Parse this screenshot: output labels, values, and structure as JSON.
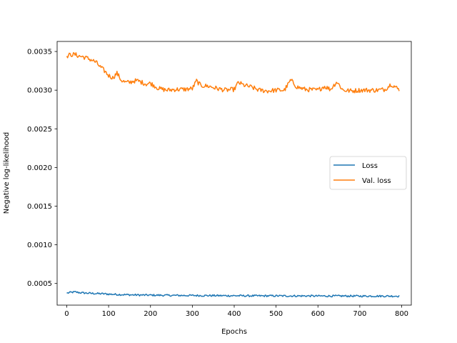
{
  "chart_data": {
    "type": "line",
    "title": "",
    "xlabel": "Epochs",
    "ylabel": "Negative log-likelihood",
    "xlim": [
      -23,
      823
    ],
    "ylim": [
      0.00022,
      0.00363
    ],
    "xticks": [
      0,
      100,
      200,
      300,
      400,
      500,
      600,
      700,
      800
    ],
    "xtick_labels": [
      "0",
      "100",
      "200",
      "300",
      "400",
      "500",
      "600",
      "700",
      "800"
    ],
    "yticks": [
      0.0005,
      0.001,
      0.0015,
      0.002,
      0.0025,
      0.003,
      0.0035
    ],
    "ytick_labels": [
      "0.0005",
      "0.0010",
      "0.0015",
      "0.0020",
      "0.0025",
      "0.0030",
      "0.0035"
    ],
    "grid": false,
    "legend_position": "center-right",
    "series": [
      {
        "name": "Loss",
        "color": "#1f77b4",
        "x": [
          0,
          10,
          20,
          30,
          40,
          50,
          60,
          70,
          80,
          90,
          100,
          120,
          140,
          160,
          180,
          200,
          220,
          250,
          280,
          300,
          320,
          350,
          380,
          400,
          420,
          450,
          480,
          500,
          520,
          550,
          580,
          600,
          620,
          650,
          680,
          700,
          720,
          750,
          780,
          795
        ],
        "y": [
          0.000375,
          0.000385,
          0.00039,
          0.000382,
          0.000378,
          0.000375,
          0.000372,
          0.00037,
          0.000368,
          0.000366,
          0.000362,
          0.000358,
          0.000355,
          0.000352,
          0.00035,
          0.000349,
          0.000348,
          0.000346,
          0.000345,
          0.000345,
          0.000344,
          0.000343,
          0.000342,
          0.000342,
          0.000341,
          0.00034,
          0.00034,
          0.00034,
          0.000339,
          0.000339,
          0.000339,
          0.000338,
          0.000338,
          0.000338,
          0.000338,
          0.000337,
          0.000337,
          0.000337,
          0.000337,
          0.000337
        ],
        "noise": 1.2e-05
      },
      {
        "name": "Val. loss",
        "color": "#ff7f0e",
        "x": [
          0,
          10,
          20,
          30,
          40,
          50,
          60,
          70,
          80,
          90,
          100,
          110,
          120,
          130,
          140,
          150,
          160,
          170,
          180,
          190,
          200,
          220,
          240,
          260,
          280,
          300,
          310,
          320,
          340,
          360,
          380,
          400,
          410,
          420,
          440,
          460,
          480,
          500,
          520,
          535,
          550,
          570,
          600,
          615,
          630,
          645,
          660,
          680,
          700,
          720,
          740,
          760,
          775,
          785,
          795
        ],
        "y": [
          0.00344,
          0.00346,
          0.00346,
          0.00344,
          0.00343,
          0.00341,
          0.00339,
          0.00336,
          0.0033,
          0.00325,
          0.00319,
          0.00316,
          0.00322,
          0.00313,
          0.0031,
          0.0031,
          0.00312,
          0.00312,
          0.0031,
          0.00308,
          0.00309,
          0.00302,
          0.003,
          0.00301,
          0.00301,
          0.00302,
          0.00312,
          0.00306,
          0.00305,
          0.00302,
          0.003,
          0.00301,
          0.0031,
          0.00307,
          0.00304,
          0.003,
          0.00299,
          0.003,
          0.003,
          0.00313,
          0.00304,
          0.00301,
          0.003,
          0.00305,
          0.00301,
          0.00311,
          0.003,
          0.00299,
          0.003,
          0.003,
          0.003,
          0.00301,
          0.00308,
          0.00304,
          0.003
        ],
        "noise": 3e-05
      }
    ]
  }
}
